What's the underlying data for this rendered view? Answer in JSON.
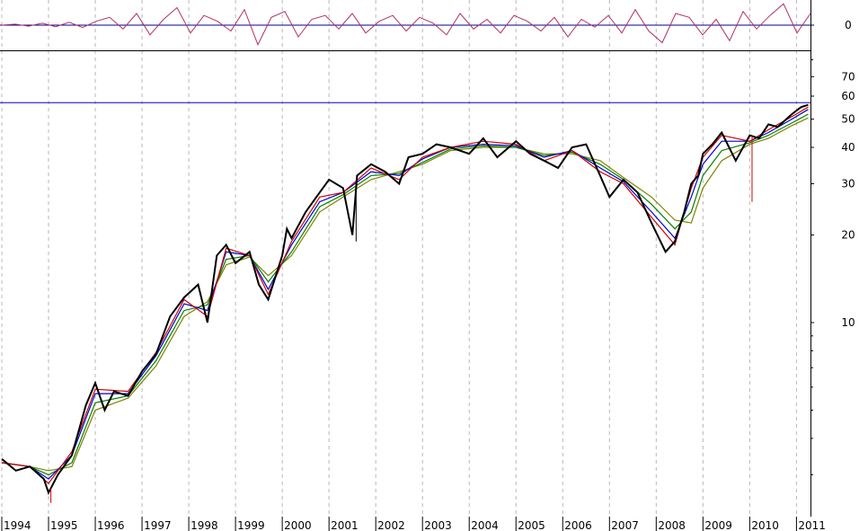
{
  "chart_data": [
    {
      "type": "line",
      "panel": "oscillator",
      "y_ticks": [
        {
          "value": 0,
          "label": "0"
        }
      ],
      "reference_line": 0,
      "ylim": [
        -1.2,
        1.2
      ],
      "series": [
        {
          "values": [
            0.0,
            0.05,
            -0.05,
            0.1,
            -0.08,
            0.15,
            -0.12,
            0.2,
            0.4,
            -0.2,
            0.6,
            -0.5,
            0.3,
            0.9,
            -0.4,
            0.5,
            0.2,
            -0.3,
            0.8,
            -1.0,
            0.4,
            0.7,
            -0.6,
            0.3,
            0.5,
            -0.2,
            0.6,
            -0.4,
            0.2,
            0.5,
            -0.3,
            0.4,
            0.1,
            -0.5,
            0.6,
            -0.2,
            0.3,
            -0.4,
            0.5,
            0.2,
            -0.3,
            0.4,
            -0.6,
            0.3,
            -0.1,
            0.5,
            -0.4,
            0.8,
            -0.3,
            -0.9,
            0.6,
            0.4,
            -0.5,
            0.3,
            -0.8,
            0.7,
            -0.2,
            0.5,
            1.1,
            -0.4,
            0.6
          ]
        }
      ],
      "colors": {
        "series": "#b0306a",
        "reference": "#000080"
      }
    },
    {
      "type": "line",
      "panel": "price",
      "scale": "log",
      "title": "",
      "x_ticks": [
        "1994",
        "1995",
        "1996",
        "1997",
        "1998",
        "1999",
        "2000",
        "2001",
        "2002",
        "2003",
        "2004",
        "2005",
        "2006",
        "2007",
        "2008",
        "2009",
        "2010",
        "2011"
      ],
      "y_ticks": [
        {
          "value": 70,
          "label": "70"
        },
        {
          "value": 60,
          "label": "60"
        },
        {
          "value": 50,
          "label": "50"
        },
        {
          "value": 40,
          "label": "40"
        },
        {
          "value": 30,
          "label": "30"
        },
        {
          "value": 20,
          "label": "20"
        },
        {
          "value": 10,
          "label": "10"
        }
      ],
      "ylim": [
        2.2,
        85
      ],
      "xlim": [
        1994.0,
        2011.3
      ],
      "horizontal_line": 57,
      "grid": "vertical dashed",
      "series": [
        {
          "color": "#000000",
          "x": [
            1994.0,
            1994.3,
            1994.6,
            1994.9,
            1995.0,
            1995.2,
            1995.5,
            1995.8,
            1996.0,
            1996.2,
            1996.4,
            1996.7,
            1997.0,
            1997.3,
            1997.6,
            1997.9,
            1998.2,
            1998.4,
            1998.6,
            1998.8,
            1999.0,
            1999.3,
            1999.5,
            1999.7,
            2000.0,
            2000.1,
            2000.2,
            2000.5,
            2000.8,
            2001.0,
            2001.3,
            2001.5,
            2001.6,
            2001.9,
            2002.2,
            2002.5,
            2002.7,
            2003.0,
            2003.3,
            2003.6,
            2004.0,
            2004.3,
            2004.6,
            2005.0,
            2005.3,
            2005.6,
            2005.9,
            2006.2,
            2006.5,
            2006.8,
            2007.0,
            2007.3,
            2007.6,
            2007.9,
            2008.2,
            2008.4,
            2008.6,
            2008.75,
            2008.9,
            2009.0,
            2009.2,
            2009.4,
            2009.7,
            2010.0,
            2010.2,
            2010.4,
            2010.6,
            2010.9,
            2011.1,
            2011.25
          ],
          "values": [
            3.4,
            3.1,
            3.2,
            2.9,
            2.6,
            3.0,
            3.5,
            5.2,
            6.2,
            5.0,
            5.8,
            5.6,
            6.8,
            7.8,
            10.5,
            12.2,
            13.5,
            10.0,
            17.0,
            18.5,
            16.0,
            17.5,
            13.5,
            12.0,
            17.0,
            21.0,
            19.5,
            24.0,
            28.0,
            31.0,
            29.0,
            20.0,
            32.0,
            35.0,
            33.0,
            30.0,
            37.0,
            38.0,
            41.0,
            40.0,
            38.0,
            43.0,
            37.0,
            42.0,
            38.0,
            36.0,
            34.0,
            40.0,
            41.0,
            32.0,
            27.0,
            31.0,
            28.0,
            22.0,
            17.5,
            19.0,
            24.0,
            30.0,
            32.0,
            38.0,
            41.0,
            45.0,
            36.0,
            44.0,
            43.0,
            48.0,
            47.0,
            52.0,
            55.0,
            56.0
          ]
        },
        {
          "color": "#cc0000",
          "x": [
            1994.0,
            1994.6,
            1995.0,
            1995.5,
            1996.0,
            1996.7,
            1997.3,
            1997.9,
            1998.4,
            1998.8,
            1999.3,
            1999.7,
            2000.2,
            2000.8,
            2001.3,
            2001.9,
            2002.5,
            2003.0,
            2003.6,
            2004.3,
            2005.0,
            2005.6,
            2006.2,
            2006.8,
            2007.3,
            2007.9,
            2008.4,
            2008.75,
            2009.0,
            2009.4,
            2010.0,
            2010.4,
            2010.9,
            2011.25
          ],
          "values": [
            3.3,
            3.2,
            2.8,
            3.6,
            5.9,
            5.8,
            7.9,
            12.0,
            10.5,
            18.0,
            17.0,
            12.5,
            19.0,
            27.0,
            28.0,
            34.0,
            31.0,
            37.0,
            40.0,
            42.0,
            41.0,
            36.0,
            39.0,
            33.0,
            30.0,
            23.0,
            18.5,
            29.0,
            37.0,
            44.0,
            42.0,
            46.0,
            51.0,
            55.0
          ]
        },
        {
          "color": "#0000cc",
          "x": [
            1994.0,
            1994.6,
            1995.0,
            1995.5,
            1996.0,
            1996.7,
            1997.3,
            1997.9,
            1998.4,
            1998.8,
            1999.3,
            1999.7,
            2000.2,
            2000.8,
            2001.3,
            2001.9,
            2002.5,
            2003.0,
            2003.6,
            2004.3,
            2005.0,
            2005.6,
            2006.2,
            2006.8,
            2007.3,
            2007.9,
            2008.4,
            2008.75,
            2009.0,
            2009.4,
            2010.0,
            2010.4,
            2010.9,
            2011.25
          ],
          "values": [
            3.3,
            3.2,
            2.9,
            3.5,
            5.7,
            5.7,
            7.7,
            11.6,
            11.0,
            17.5,
            17.0,
            13.0,
            18.5,
            26.0,
            28.0,
            33.0,
            32.0,
            36.5,
            40.0,
            41.0,
            40.5,
            37.0,
            39.0,
            34.0,
            30.5,
            24.0,
            19.5,
            27.0,
            35.0,
            42.0,
            42.0,
            45.0,
            50.0,
            54.0
          ]
        },
        {
          "color": "#008000",
          "x": [
            1994.0,
            1994.6,
            1995.0,
            1995.5,
            1996.0,
            1996.7,
            1997.3,
            1997.9,
            1998.4,
            1998.8,
            1999.3,
            1999.7,
            2000.2,
            2000.8,
            2001.3,
            2001.9,
            2002.5,
            2003.0,
            2003.6,
            2004.3,
            2005.0,
            2005.6,
            2006.2,
            2006.8,
            2007.3,
            2007.9,
            2008.4,
            2008.75,
            2009.0,
            2009.4,
            2010.0,
            2010.4,
            2010.9,
            2011.25
          ],
          "values": [
            3.3,
            3.2,
            3.0,
            3.3,
            5.3,
            5.6,
            7.4,
            11.0,
            11.5,
            16.5,
            17.0,
            13.8,
            17.5,
            25.0,
            27.5,
            32.0,
            32.5,
            35.5,
            39.5,
            40.5,
            40.0,
            37.5,
            38.5,
            35.0,
            31.0,
            25.5,
            21.0,
            24.0,
            32.0,
            39.0,
            41.5,
            44.0,
            48.5,
            52.0
          ]
        },
        {
          "color": "#808000",
          "x": [
            1994.0,
            1994.6,
            1995.0,
            1995.5,
            1996.0,
            1996.7,
            1997.3,
            1997.9,
            1998.4,
            1998.8,
            1999.3,
            1999.7,
            2000.2,
            2000.8,
            2001.3,
            2001.9,
            2002.5,
            2003.0,
            2003.6,
            2004.3,
            2005.0,
            2005.6,
            2006.2,
            2006.8,
            2007.3,
            2007.9,
            2008.4,
            2008.75,
            2009.0,
            2009.4,
            2010.0,
            2010.4,
            2010.9,
            2011.25
          ],
          "values": [
            3.3,
            3.2,
            3.1,
            3.2,
            5.0,
            5.5,
            7.1,
            10.5,
            11.8,
            15.8,
            16.8,
            14.5,
            17.0,
            24.0,
            27.0,
            31.0,
            33.0,
            35.0,
            39.0,
            40.0,
            40.0,
            38.0,
            38.0,
            36.0,
            31.5,
            27.0,
            22.5,
            22.0,
            29.0,
            36.0,
            41.0,
            43.0,
            47.5,
            50.5
          ]
        }
      ],
      "spikes": [
        {
          "x": 1995.05,
          "low": 2.4,
          "color": "#cc0000"
        },
        {
          "x": 2001.58,
          "low": 19.0,
          "color": "#000000"
        },
        {
          "x": 2010.05,
          "low": 26.0,
          "color": "#cc0000"
        }
      ]
    }
  ]
}
